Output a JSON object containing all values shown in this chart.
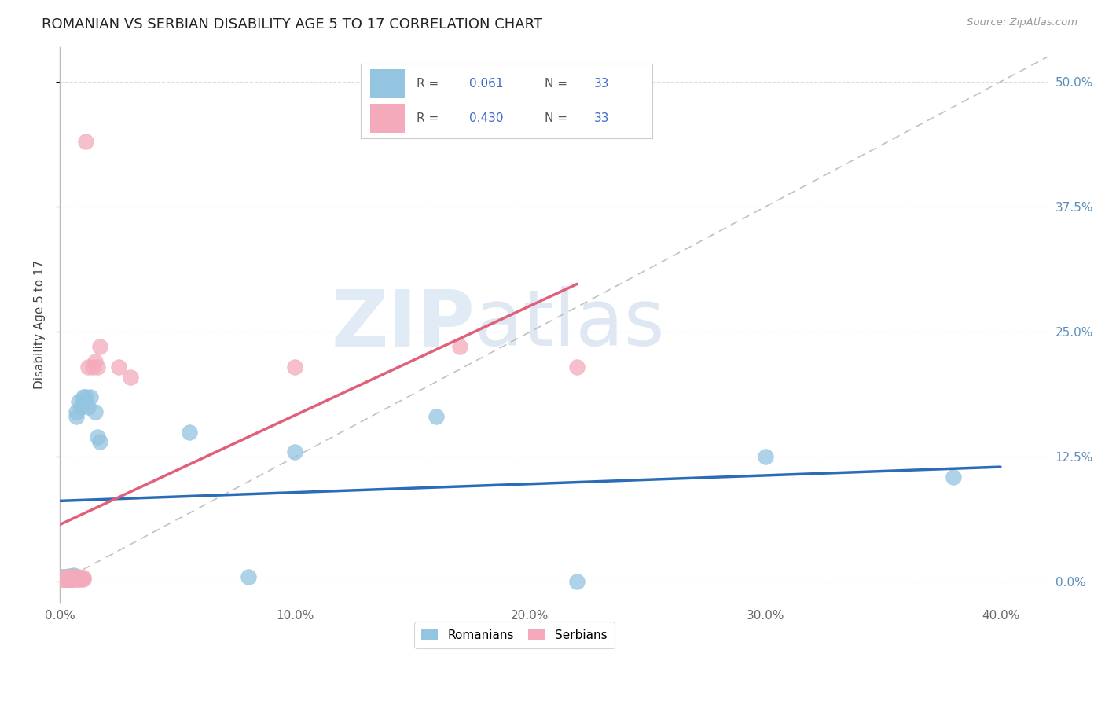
{
  "title": "ROMANIAN VS SERBIAN DISABILITY AGE 5 TO 17 CORRELATION CHART",
  "source": "Source: ZipAtlas.com",
  "ylabel": "Disability Age 5 to 17",
  "xlim": [
    0.0,
    0.42
  ],
  "ylim": [
    -0.02,
    0.535
  ],
  "legend_R_blue": "0.061",
  "legend_R_pink": "0.430",
  "legend_N": "33",
  "rom_x": [
    0.001,
    0.002,
    0.002,
    0.003,
    0.003,
    0.004,
    0.004,
    0.005,
    0.005,
    0.006,
    0.007,
    0.007,
    0.008,
    0.009,
    0.01,
    0.01,
    0.011,
    0.012,
    0.013,
    0.015,
    0.016,
    0.017,
    0.055,
    0.08,
    0.1,
    0.16,
    0.22,
    0.3,
    0.38,
    0.003,
    0.005,
    0.006,
    0.009
  ],
  "rom_y": [
    0.005,
    0.005,
    0.003,
    0.005,
    0.004,
    0.006,
    0.003,
    0.006,
    0.004,
    0.007,
    0.17,
    0.165,
    0.18,
    0.175,
    0.185,
    0.18,
    0.185,
    0.175,
    0.185,
    0.17,
    0.145,
    0.14,
    0.15,
    0.005,
    0.13,
    0.165,
    0.0,
    0.125,
    0.105,
    0.003,
    0.003,
    0.005,
    0.004
  ],
  "ser_x": [
    0.001,
    0.001,
    0.002,
    0.002,
    0.003,
    0.003,
    0.004,
    0.004,
    0.005,
    0.005,
    0.006,
    0.006,
    0.007,
    0.008,
    0.008,
    0.009,
    0.01,
    0.01,
    0.011,
    0.012,
    0.014,
    0.015,
    0.016,
    0.017,
    0.025,
    0.03,
    0.1,
    0.17,
    0.22,
    0.003,
    0.004,
    0.005,
    0.007
  ],
  "ser_y": [
    0.003,
    0.003,
    0.004,
    0.003,
    0.004,
    0.003,
    0.005,
    0.003,
    0.005,
    0.003,
    0.005,
    0.003,
    0.004,
    0.005,
    0.003,
    0.003,
    0.004,
    0.003,
    0.44,
    0.215,
    0.215,
    0.22,
    0.215,
    0.235,
    0.215,
    0.205,
    0.215,
    0.235,
    0.215,
    0.003,
    0.003,
    0.003,
    0.003
  ],
  "color_blue": "#93C4E0",
  "color_pink": "#F4AABB",
  "color_blue_line": "#2B6CB8",
  "color_pink_line": "#E0607A",
  "color_diag_line": "#BBBBBB",
  "watermark_zip": "ZIP",
  "watermark_atlas": "atlas",
  "background_color": "#FFFFFF",
  "grid_color": "#DDDDDD",
  "ytick_vals": [
    0.0,
    0.125,
    0.25,
    0.375,
    0.5
  ],
  "ytick_labels": [
    "0.0%",
    "12.5%",
    "25.0%",
    "37.5%",
    "50.0%"
  ],
  "xtick_vals": [
    0.0,
    0.1,
    0.2,
    0.3,
    0.4
  ],
  "xtick_labels": [
    "0.0%",
    "10.0%",
    "20.0%",
    "30.0%",
    "40.0%"
  ]
}
